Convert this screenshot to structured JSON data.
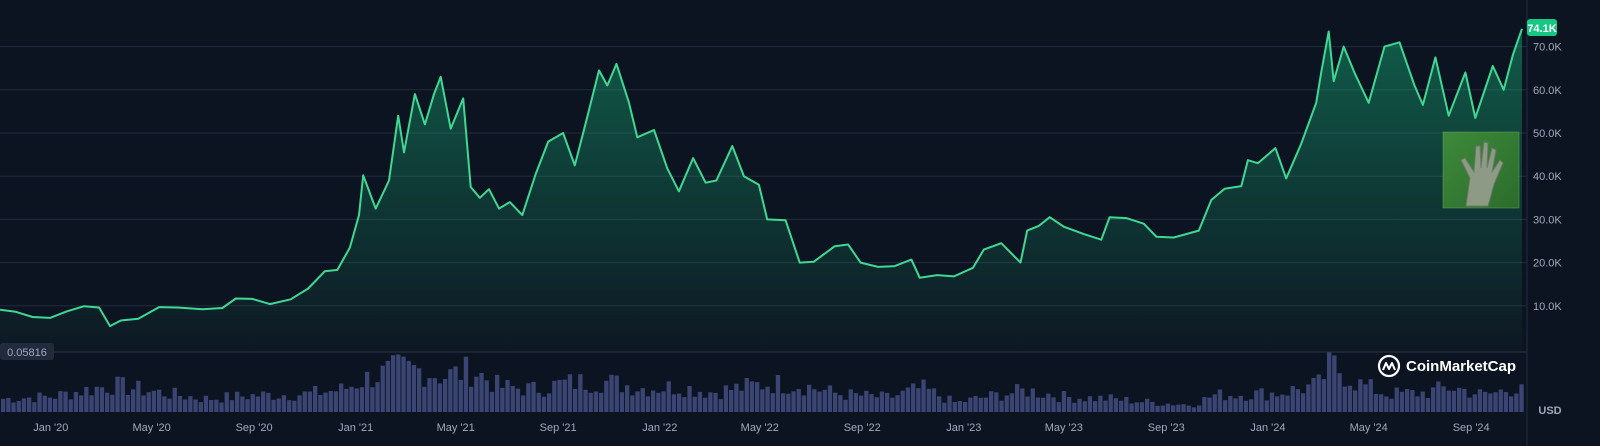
{
  "chart_data": {
    "type": "area",
    "currency": "USD",
    "brand": "CoinMarketCap",
    "last_value_label": "74.1K",
    "baseline_label": "0.05816",
    "colors": {
      "background": "#0d1421",
      "line": "#3fd893",
      "badge": "#16c784",
      "volume": "#3a4573",
      "grid": "#222b3d"
    },
    "x_axis_labels": [
      "Jan '20",
      "May '20",
      "Sep '20",
      "Jan '21",
      "May '21",
      "Sep '21",
      "Jan '22",
      "May '22",
      "Sep '22",
      "Jan '23",
      "May '23",
      "Sep '23",
      "Jan '24",
      "May '24",
      "Sep '24"
    ],
    "y_axis": {
      "ticks": [
        10000,
        20000,
        30000,
        40000,
        50000,
        60000,
        70000
      ],
      "tick_labels": [
        "10.0K",
        "20.0K",
        "30.0K",
        "40.0K",
        "50.0K",
        "60.0K",
        "70.0K"
      ],
      "range": [
        0,
        78000
      ]
    },
    "x_range": [
      "2019-11-01",
      "2024-11-01"
    ],
    "price_series": [
      [
        "2019-11-01",
        9100
      ],
      [
        "2019-11-20",
        8600
      ],
      [
        "2019-12-10",
        7400
      ],
      [
        "2019-12-31",
        7200
      ],
      [
        "2020-01-20",
        8700
      ],
      [
        "2020-02-10",
        9900
      ],
      [
        "2020-02-28",
        9600
      ],
      [
        "2020-03-12",
        5300
      ],
      [
        "2020-03-25",
        6600
      ],
      [
        "2020-04-15",
        7000
      ],
      [
        "2020-05-10",
        9700
      ],
      [
        "2020-06-01",
        9600
      ],
      [
        "2020-07-01",
        9200
      ],
      [
        "2020-07-25",
        9500
      ],
      [
        "2020-08-10",
        11700
      ],
      [
        "2020-08-30",
        11600
      ],
      [
        "2020-09-20",
        10400
      ],
      [
        "2020-10-15",
        11500
      ],
      [
        "2020-11-05",
        14000
      ],
      [
        "2020-11-25",
        18000
      ],
      [
        "2020-12-10",
        18300
      ],
      [
        "2020-12-25",
        23500
      ],
      [
        "2021-01-05",
        31000
      ],
      [
        "2021-01-10",
        40200
      ],
      [
        "2021-01-25",
        32500
      ],
      [
        "2021-02-10",
        39000
      ],
      [
        "2021-02-21",
        54000
      ],
      [
        "2021-02-28",
        45500
      ],
      [
        "2021-03-13",
        59000
      ],
      [
        "2021-03-25",
        52000
      ],
      [
        "2021-04-05",
        59000
      ],
      [
        "2021-04-13",
        63000
      ],
      [
        "2021-04-25",
        51000
      ],
      [
        "2021-05-10",
        58000
      ],
      [
        "2021-05-19",
        37500
      ],
      [
        "2021-05-30",
        35000
      ],
      [
        "2021-06-10",
        37000
      ],
      [
        "2021-06-22",
        32500
      ],
      [
        "2021-07-05",
        34000
      ],
      [
        "2021-07-20",
        31000
      ],
      [
        "2021-08-05",
        40500
      ],
      [
        "2021-08-20",
        48000
      ],
      [
        "2021-09-07",
        50000
      ],
      [
        "2021-09-21",
        42500
      ],
      [
        "2021-10-05",
        53000
      ],
      [
        "2021-10-20",
        64500
      ],
      [
        "2021-10-30",
        61000
      ],
      [
        "2021-11-10",
        66000
      ],
      [
        "2021-11-25",
        57000
      ],
      [
        "2021-12-05",
        49000
      ],
      [
        "2021-12-25",
        50700
      ],
      [
        "2022-01-10",
        41800
      ],
      [
        "2022-01-24",
        36500
      ],
      [
        "2022-02-10",
        44200
      ],
      [
        "2022-02-25",
        38500
      ],
      [
        "2022-03-10",
        39000
      ],
      [
        "2022-03-29",
        47000
      ],
      [
        "2022-04-12",
        40000
      ],
      [
        "2022-04-30",
        38000
      ],
      [
        "2022-05-10",
        30000
      ],
      [
        "2022-06-01",
        29800
      ],
      [
        "2022-06-18",
        20000
      ],
      [
        "2022-07-05",
        20200
      ],
      [
        "2022-07-30",
        23800
      ],
      [
        "2022-08-15",
        24200
      ],
      [
        "2022-08-30",
        20000
      ],
      [
        "2022-09-20",
        19000
      ],
      [
        "2022-10-10",
        19200
      ],
      [
        "2022-10-30",
        20700
      ],
      [
        "2022-11-09",
        16500
      ],
      [
        "2022-11-30",
        17100
      ],
      [
        "2022-12-20",
        16800
      ],
      [
        "2023-01-12",
        18800
      ],
      [
        "2023-01-25",
        23000
      ],
      [
        "2023-02-15",
        24500
      ],
      [
        "2023-03-10",
        20000
      ],
      [
        "2023-03-18",
        27400
      ],
      [
        "2023-04-01",
        28500
      ],
      [
        "2023-04-14",
        30500
      ],
      [
        "2023-05-01",
        28300
      ],
      [
        "2023-05-25",
        26600
      ],
      [
        "2023-06-15",
        25300
      ],
      [
        "2023-06-25",
        30500
      ],
      [
        "2023-07-15",
        30300
      ],
      [
        "2023-08-05",
        29000
      ],
      [
        "2023-08-20",
        26000
      ],
      [
        "2023-09-10",
        25800
      ],
      [
        "2023-10-10",
        27400
      ],
      [
        "2023-10-25",
        34500
      ],
      [
        "2023-11-10",
        37100
      ],
      [
        "2023-11-30",
        37700
      ],
      [
        "2023-12-08",
        43700
      ],
      [
        "2023-12-20",
        43000
      ],
      [
        "2024-01-10",
        46500
      ],
      [
        "2024-01-23",
        39500
      ],
      [
        "2024-02-10",
        47500
      ],
      [
        "2024-02-28",
        57000
      ],
      [
        "2024-03-05",
        64000
      ],
      [
        "2024-03-14",
        73500
      ],
      [
        "2024-03-20",
        62000
      ],
      [
        "2024-04-01",
        70000
      ],
      [
        "2024-04-15",
        63500
      ],
      [
        "2024-05-01",
        57000
      ],
      [
        "2024-05-20",
        70000
      ],
      [
        "2024-06-07",
        71000
      ],
      [
        "2024-06-25",
        61000
      ],
      [
        "2024-07-05",
        56500
      ],
      [
        "2024-07-20",
        67500
      ],
      [
        "2024-08-05",
        54000
      ],
      [
        "2024-08-25",
        64000
      ],
      [
        "2024-09-06",
        53500
      ],
      [
        "2024-09-27",
        65500
      ],
      [
        "2024-10-10",
        60000
      ],
      [
        "2024-10-21",
        68000
      ],
      [
        "2024-10-29",
        72500
      ],
      [
        "2024-11-01",
        74100
      ]
    ],
    "volume_series": [
      [
        "2019-11-01",
        0.22
      ],
      [
        "2020-01-01",
        0.26
      ],
      [
        "2020-03-12",
        0.45
      ],
      [
        "2020-05-01",
        0.34
      ],
      [
        "2020-07-01",
        0.22
      ],
      [
        "2020-09-01",
        0.28
      ],
      [
        "2020-11-01",
        0.3
      ],
      [
        "2020-12-15",
        0.38
      ],
      [
        "2021-01-10",
        0.55
      ],
      [
        "2021-02-20",
        0.72
      ],
      [
        "2021-03-15",
        0.7
      ],
      [
        "2021-04-15",
        0.6
      ],
      [
        "2021-05-19",
        0.7
      ],
      [
        "2021-06-20",
        0.42
      ],
      [
        "2021-08-01",
        0.38
      ],
      [
        "2021-09-07",
        0.48
      ],
      [
        "2021-10-20",
        0.52
      ],
      [
        "2021-12-10",
        0.4
      ],
      [
        "2022-01-24",
        0.42
      ],
      [
        "2022-03-01",
        0.33
      ],
      [
        "2022-05-10",
        0.48
      ],
      [
        "2022-06-18",
        0.45
      ],
      [
        "2022-08-01",
        0.3
      ],
      [
        "2022-10-01",
        0.24
      ],
      [
        "2022-11-09",
        0.4
      ],
      [
        "2022-12-20",
        0.15
      ],
      [
        "2023-01-20",
        0.24
      ],
      [
        "2023-03-15",
        0.36
      ],
      [
        "2023-05-01",
        0.25
      ],
      [
        "2023-06-25",
        0.22
      ],
      [
        "2023-08-20",
        0.15
      ],
      [
        "2023-10-01",
        0.12
      ],
      [
        "2023-10-25",
        0.28
      ],
      [
        "2023-12-08",
        0.3
      ],
      [
        "2024-01-12",
        0.32
      ],
      [
        "2024-02-28",
        0.45
      ],
      [
        "2024-03-14",
        0.8
      ],
      [
        "2024-04-15",
        0.48
      ],
      [
        "2024-05-20",
        0.3
      ],
      [
        "2024-07-05",
        0.32
      ],
      [
        "2024-08-05",
        0.42
      ],
      [
        "2024-09-15",
        0.28
      ],
      [
        "2024-10-20",
        0.4
      ],
      [
        "2024-11-01",
        0.55
      ]
    ],
    "grid": true
  }
}
